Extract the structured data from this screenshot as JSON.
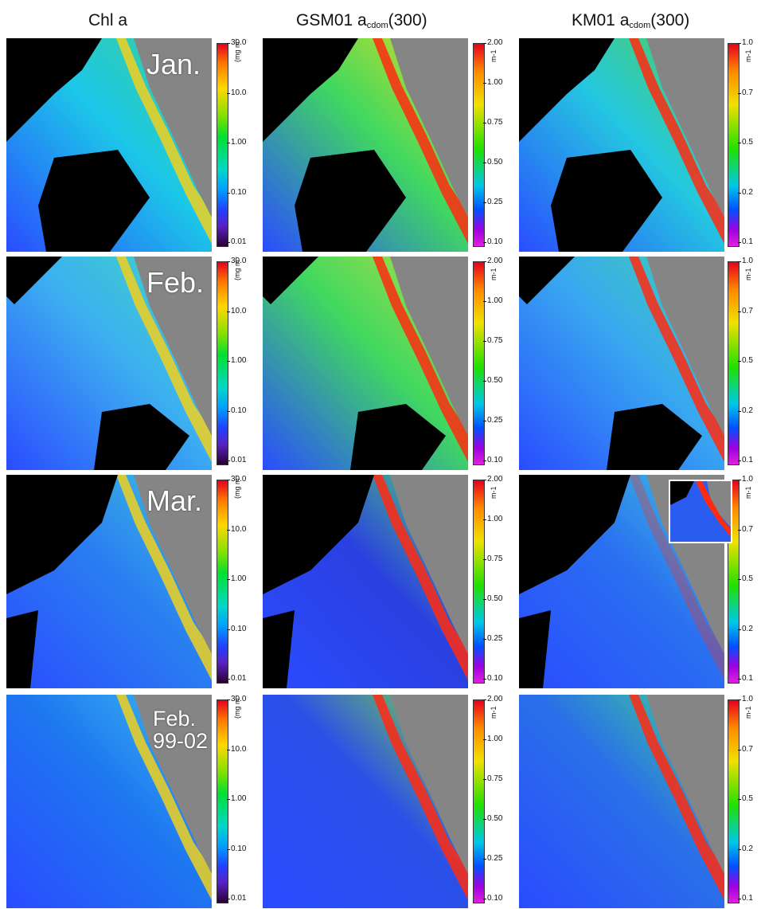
{
  "columns": [
    {
      "title": "Chl a",
      "base": "",
      "sub": "",
      "suffix": ""
    },
    {
      "title": "",
      "base": "GSM01 a",
      "sub": "cdom",
      "suffix": "(300)"
    },
    {
      "title": "",
      "base": "KM01 a",
      "sub": "cdom",
      "suffix": "(300)"
    }
  ],
  "rows": [
    {
      "label": "Jan.",
      "label2": ""
    },
    {
      "label": "Feb.",
      "label2": ""
    },
    {
      "label": "Mar.",
      "label2": ""
    },
    {
      "label": "Feb.",
      "label2": "99-02"
    }
  ],
  "colorbars": {
    "chl": {
      "unit": "(mg m⁻³)",
      "ticks": [
        "30.0",
        "10.0",
        "1.00",
        "0.10",
        "0.01"
      ]
    },
    "gsm": {
      "unit": "m-1",
      "ticks": [
        "2.00",
        "1.00",
        "0.75",
        "0.50",
        "0.25",
        "0.10"
      ]
    },
    "km": {
      "unit": "m-1",
      "ticks": [
        "1.0",
        "0.7",
        "0.5",
        "0.2",
        "0.1"
      ]
    }
  },
  "colors": {
    "land": "#858585",
    "cloud": "#000000",
    "ocean_low": "#2a4cff",
    "ocean_mid": "#27c8f0",
    "ocean_high": "#6ee04a",
    "coastal_high": "#ff2a10"
  }
}
